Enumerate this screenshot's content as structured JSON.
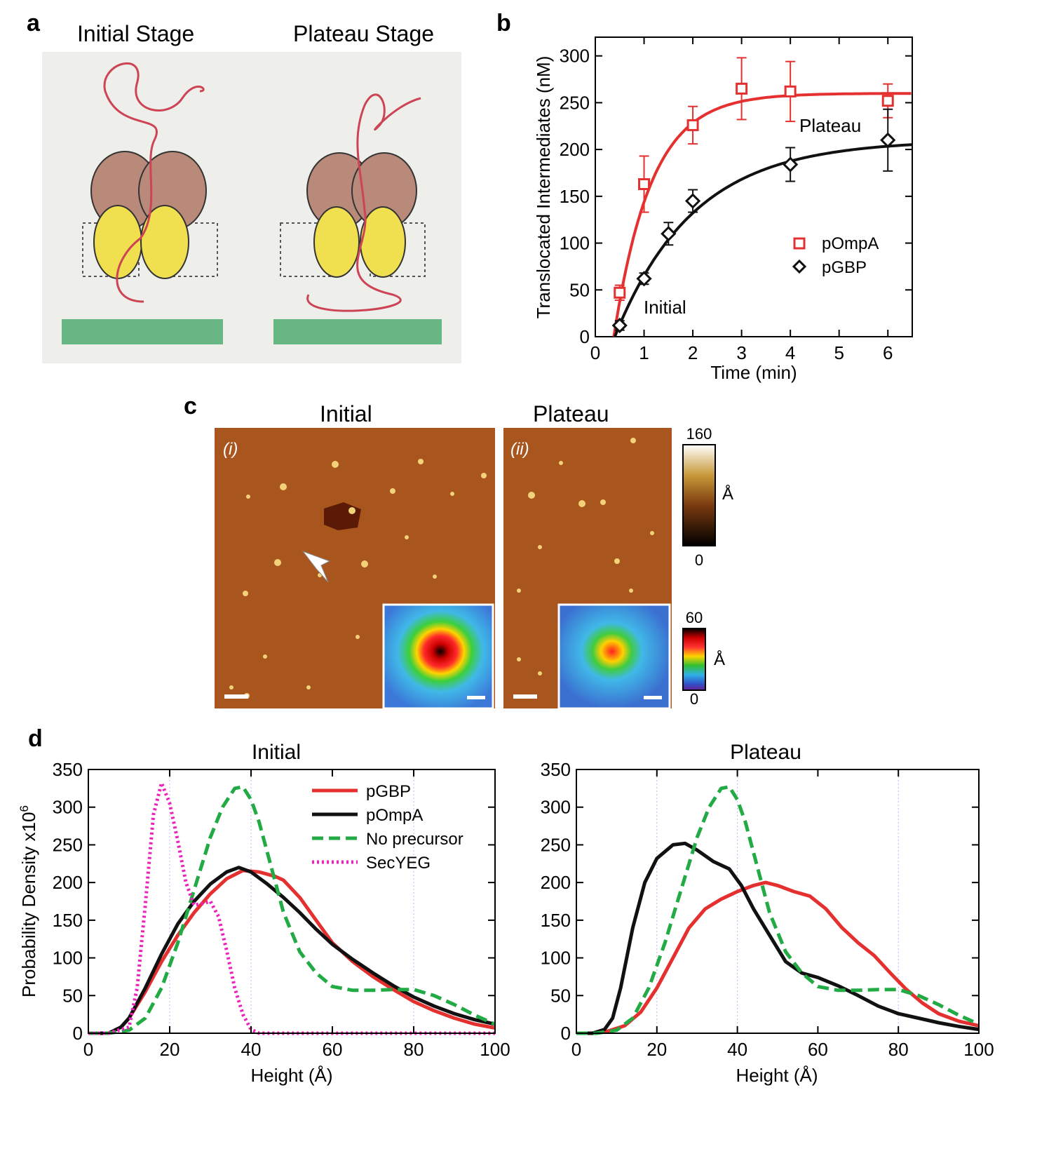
{
  "colors": {
    "red": "#e53030",
    "black": "#111111",
    "green": "#22aa44",
    "magenta": "#ee22bb",
    "afm_brown": "#a8561e",
    "grid": "#b8b8f0"
  },
  "panel_a": {
    "label": "a",
    "left_title": "Initial Stage",
    "right_title": "Plateau Stage"
  },
  "panel_c": {
    "label": "c",
    "left_title": "Initial",
    "right_title": "Plateau",
    "left_tag": "(i)",
    "right_tag": "(ii)",
    "scale1": {
      "max": "160",
      "min": "0",
      "unit": "Å"
    },
    "scale2": {
      "max": "60",
      "min": "0",
      "unit": "Å"
    }
  },
  "panel_d_label": "d",
  "chart_data": [
    {
      "id": "b",
      "label": "b",
      "type": "scatter",
      "title": "",
      "xlabel": "Time (min)",
      "ylabel": "Translocated Intermediates (nM)",
      "xlim": [
        0,
        6.5
      ],
      "ylim": [
        0,
        320
      ],
      "xticks": [
        0,
        1,
        2,
        3,
        4,
        5,
        6
      ],
      "yticks": [
        0,
        50,
        100,
        150,
        200,
        250,
        300
      ],
      "annotations": {
        "plateau": "Plateau",
        "initial": "Initial"
      },
      "series": [
        {
          "name": "pOmpA",
          "color": "#e53030",
          "marker": "square",
          "x": [
            0.5,
            1,
            2,
            3,
            4,
            6
          ],
          "y": [
            47,
            163,
            226,
            265,
            262,
            252
          ],
          "err": [
            8,
            30,
            20,
            33,
            32,
            18
          ],
          "fit": {
            "plateau": 260,
            "k": 1.3,
            "t0": 0.38
          }
        },
        {
          "name": "pGBP",
          "color": "#111111",
          "marker": "diamond",
          "x": [
            0.5,
            1,
            1.5,
            2,
            4,
            6
          ],
          "y": [
            12,
            62,
            110,
            145,
            184,
            210
          ],
          "err": [
            5,
            6,
            12,
            12,
            18,
            33
          ],
          "fit": {
            "plateau": 210,
            "k": 0.62,
            "t0": 0.4
          }
        }
      ]
    },
    {
      "id": "d1",
      "type": "line",
      "title": "Initial",
      "xlabel": "Height (Å)",
      "ylabel": "Probability Density x10",
      "ylabel_sup": "6",
      "xlim": [
        0,
        100
      ],
      "ylim": [
        0,
        350
      ],
      "xticks": [
        0,
        20,
        40,
        60,
        80,
        100
      ],
      "yticks": [
        0,
        50,
        100,
        150,
        200,
        250,
        300,
        350
      ],
      "series": [
        {
          "name": "pGBP",
          "color": "#e53030",
          "style": "solid",
          "x": [
            0,
            5,
            8,
            10,
            14,
            18,
            22,
            26,
            30,
            34,
            38,
            42,
            46,
            48,
            52,
            56,
            60,
            65,
            70,
            75,
            80,
            85,
            90,
            95,
            100
          ],
          "y": [
            0,
            0,
            8,
            20,
            55,
            95,
            130,
            160,
            185,
            205,
            216,
            214,
            208,
            203,
            180,
            150,
            120,
            95,
            75,
            58,
            42,
            30,
            20,
            12,
            7
          ]
        },
        {
          "name": "pOmpA",
          "color": "#111111",
          "style": "solid",
          "x": [
            0,
            5,
            8,
            10,
            14,
            18,
            22,
            26,
            30,
            34,
            37,
            40,
            44,
            48,
            52,
            56,
            60,
            65,
            70,
            75,
            80,
            85,
            90,
            95,
            100
          ],
          "y": [
            0,
            0,
            8,
            20,
            60,
            105,
            145,
            175,
            198,
            214,
            220,
            214,
            198,
            180,
            160,
            138,
            118,
            98,
            80,
            63,
            48,
            36,
            26,
            18,
            12
          ]
        },
        {
          "name": "No precursor",
          "color": "#22aa44",
          "style": "dashed",
          "x": [
            0,
            5,
            10,
            14,
            18,
            22,
            26,
            30,
            33,
            36,
            38,
            40,
            42,
            45,
            48,
            52,
            56,
            60,
            65,
            70,
            75,
            80,
            85,
            90,
            95,
            100
          ],
          "y": [
            0,
            0,
            4,
            20,
            60,
            120,
            190,
            260,
            300,
            325,
            327,
            310,
            280,
            220,
            160,
            108,
            80,
            62,
            57,
            57,
            58,
            58,
            50,
            38,
            24,
            12
          ]
        },
        {
          "name": "SecYEG",
          "color": "#ee22bb",
          "style": "dotted",
          "x": [
            0,
            5,
            10,
            12,
            14,
            16,
            18,
            20,
            22,
            24,
            26,
            28,
            30,
            32,
            34,
            36,
            38,
            40,
            42,
            45,
            50,
            60,
            80,
            100
          ],
          "y": [
            0,
            0,
            8,
            60,
            170,
            290,
            332,
            305,
            255,
            200,
            170,
            172,
            175,
            155,
            110,
            60,
            25,
            5,
            0,
            0,
            0,
            0,
            0,
            0
          ]
        }
      ]
    },
    {
      "id": "d2",
      "type": "line",
      "title": "Plateau",
      "xlabel": "Height (Å)",
      "ylabel": "",
      "xlim": [
        0,
        100
      ],
      "ylim": [
        0,
        350
      ],
      "xticks": [
        0,
        20,
        40,
        60,
        80,
        100
      ],
      "yticks": [
        0,
        50,
        100,
        150,
        200,
        250,
        300,
        350
      ],
      "series": [
        {
          "name": "pGBP",
          "color": "#e53030",
          "style": "solid",
          "x": [
            0,
            4,
            8,
            12,
            16,
            20,
            24,
            28,
            32,
            36,
            40,
            44,
            47,
            50,
            54,
            58,
            62,
            66,
            70,
            74,
            78,
            82,
            86,
            90,
            95,
            100
          ],
          "y": [
            0,
            0,
            3,
            10,
            28,
            60,
            100,
            140,
            165,
            178,
            188,
            196,
            200,
            196,
            188,
            182,
            165,
            140,
            120,
            103,
            80,
            58,
            40,
            26,
            16,
            10
          ]
        },
        {
          "name": "pOmpA",
          "color": "#111111",
          "style": "solid",
          "x": [
            0,
            4,
            7,
            9,
            11,
            14,
            17,
            20,
            24,
            27,
            30,
            34,
            38,
            41,
            44,
            48,
            52,
            56,
            60,
            65,
            70,
            75,
            80,
            85,
            90,
            95,
            100
          ],
          "y": [
            0,
            0,
            5,
            20,
            60,
            140,
            200,
            232,
            250,
            252,
            243,
            228,
            218,
            196,
            165,
            130,
            95,
            80,
            74,
            63,
            50,
            36,
            26,
            20,
            14,
            9,
            5
          ]
        },
        {
          "name": "No precursor",
          "color": "#22aa44",
          "style": "dashed",
          "x": [
            0,
            5,
            10,
            14,
            18,
            22,
            26,
            30,
            33,
            36,
            38,
            40,
            42,
            45,
            48,
            52,
            56,
            60,
            65,
            70,
            75,
            80,
            85,
            90,
            95,
            100
          ],
          "y": [
            0,
            0,
            4,
            20,
            60,
            120,
            190,
            260,
            300,
            325,
            327,
            310,
            280,
            220,
            160,
            108,
            80,
            62,
            57,
            57,
            58,
            58,
            50,
            38,
            24,
            12
          ]
        }
      ]
    }
  ]
}
